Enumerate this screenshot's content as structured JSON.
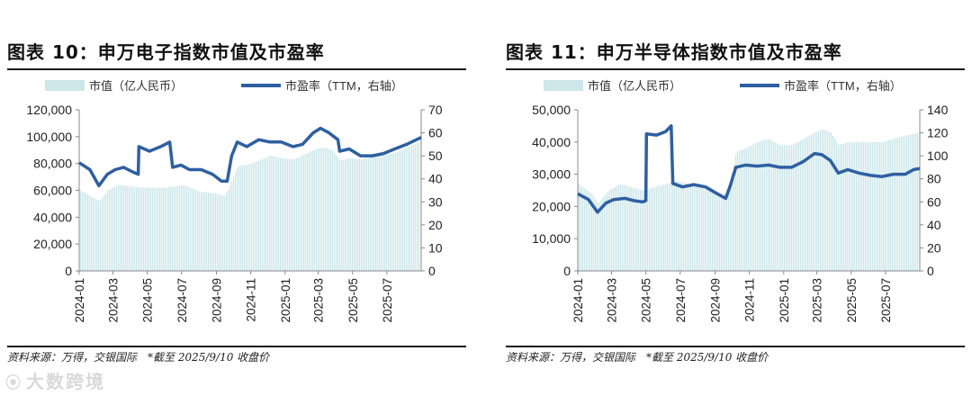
{
  "watermark": "大数跨境",
  "chart_data": [
    {
      "type": "bar+line",
      "title": "图表 10：申万电子指数市值及市盈率",
      "legend": {
        "bar": "市值（亿人民币）",
        "line": "市盈率（TTM，右轴）",
        "placement": "top"
      },
      "x_ticks": [
        "2024-01",
        "2024-03",
        "2024-05",
        "2024-07",
        "2024-09",
        "2024-11",
        "2025-01",
        "2025-03",
        "2025-05",
        "2025-07"
      ],
      "x_range": [
        "2024-01-01",
        "2025-08-31"
      ],
      "y_left": {
        "range": [
          0,
          120000
        ],
        "ticks": [
          "0",
          "20,000",
          "40,000",
          "60,000",
          "80,000",
          "100,000",
          "120,000"
        ]
      },
      "y_right": {
        "range": [
          0,
          70
        ],
        "ticks": [
          "0",
          "10",
          "20",
          "30",
          "40",
          "50",
          "60",
          "70"
        ]
      },
      "bar_color": "#cce6ea",
      "line_color": "#2e5fa1",
      "series": [
        {
          "name": "市值（亿人民币）",
          "axis": "left",
          "points": [
            [
              "2024-01-01",
              60000
            ],
            [
              "2024-01-20",
              56000
            ],
            [
              "2024-02-05",
              52000
            ],
            [
              "2024-02-20",
              60000
            ],
            [
              "2024-03-10",
              64000
            ],
            [
              "2024-04-01",
              63000
            ],
            [
              "2024-04-20",
              62000
            ],
            [
              "2024-05-10",
              62000
            ],
            [
              "2024-06-01",
              62000
            ],
            [
              "2024-06-20",
              63000
            ],
            [
              "2024-07-05",
              64000
            ],
            [
              "2024-08-01",
              59000
            ],
            [
              "2024-08-25",
              58000
            ],
            [
              "2024-09-15",
              56000
            ],
            [
              "2024-09-25",
              64000
            ],
            [
              "2024-10-08",
              78000
            ],
            [
              "2024-10-25",
              79000
            ],
            [
              "2024-11-15",
              82000
            ],
            [
              "2024-12-05",
              86000
            ],
            [
              "2024-12-25",
              84000
            ],
            [
              "2025-01-15",
              83000
            ],
            [
              "2025-02-05",
              87000
            ],
            [
              "2025-02-25",
              91000
            ],
            [
              "2025-03-10",
              92000
            ],
            [
              "2025-03-25",
              90000
            ],
            [
              "2025-04-08",
              82000
            ],
            [
              "2025-04-25",
              84000
            ],
            [
              "2025-05-15",
              83000
            ],
            [
              "2025-06-05",
              85000
            ],
            [
              "2025-06-25",
              86000
            ],
            [
              "2025-07-15",
              88000
            ],
            [
              "2025-08-05",
              92000
            ],
            [
              "2025-08-31",
              97000
            ]
          ]
        },
        {
          "name": "市盈率（TTM，右轴）",
          "axis": "right",
          "points": [
            [
              "2024-01-01",
              47
            ],
            [
              "2024-01-20",
              44
            ],
            [
              "2024-02-05",
              37
            ],
            [
              "2024-02-20",
              42
            ],
            [
              "2024-03-05",
              44
            ],
            [
              "2024-03-20",
              45
            ],
            [
              "2024-04-05",
              43
            ],
            [
              "2024-04-15",
              42
            ],
            [
              "2024-04-16",
              54
            ],
            [
              "2024-05-05",
              52
            ],
            [
              "2024-05-25",
              54
            ],
            [
              "2024-06-10",
              56
            ],
            [
              "2024-06-15",
              45
            ],
            [
              "2024-06-30",
              46
            ],
            [
              "2024-07-15",
              44
            ],
            [
              "2024-08-05",
              44
            ],
            [
              "2024-08-25",
              42
            ],
            [
              "2024-09-10",
              39
            ],
            [
              "2024-09-20",
              39
            ],
            [
              "2024-09-28",
              50
            ],
            [
              "2024-10-08",
              56
            ],
            [
              "2024-10-25",
              54
            ],
            [
              "2024-11-15",
              57
            ],
            [
              "2024-12-05",
              56
            ],
            [
              "2024-12-25",
              56
            ],
            [
              "2025-01-15",
              54
            ],
            [
              "2025-02-01",
              55
            ],
            [
              "2025-02-20",
              60
            ],
            [
              "2025-03-05",
              62
            ],
            [
              "2025-03-20",
              60
            ],
            [
              "2025-04-05",
              57
            ],
            [
              "2025-04-08",
              52
            ],
            [
              "2025-04-25",
              53
            ],
            [
              "2025-05-15",
              50
            ],
            [
              "2025-06-05",
              50
            ],
            [
              "2025-06-25",
              51
            ],
            [
              "2025-07-15",
              53
            ],
            [
              "2025-08-05",
              55
            ],
            [
              "2025-08-31",
              58
            ]
          ]
        }
      ],
      "source": "资料来源：万得，交银国际　*截至 2025/9/10 收盘价"
    },
    {
      "type": "bar+line",
      "title": "图表 11：申万半导体指数市值及市盈率",
      "legend": {
        "bar": "市值（亿人民币）",
        "line": "市盈率（TTM，右轴）",
        "placement": "top"
      },
      "x_ticks": [
        "2024-01",
        "2024-03",
        "2024-05",
        "2024-07",
        "2024-09",
        "2024-11",
        "2025-01",
        "2025-03",
        "2025-05",
        "2025-07"
      ],
      "x_range": [
        "2024-01-01",
        "2025-08-31"
      ],
      "y_left": {
        "range": [
          0,
          50000
        ],
        "ticks": [
          "0",
          "10,000",
          "20,000",
          "30,000",
          "40,000",
          "50,000"
        ]
      },
      "y_right": {
        "range": [
          0,
          140
        ],
        "ticks": [
          "0",
          "20",
          "40",
          "60",
          "80",
          "100",
          "120",
          "140"
        ]
      },
      "bar_color": "#cce6ea",
      "line_color": "#2e5fa1",
      "series": [
        {
          "name": "市值（亿人民币）",
          "axis": "left",
          "points": [
            [
              "2024-01-01",
              27000
            ],
            [
              "2024-01-25",
              24000
            ],
            [
              "2024-02-05",
              21000
            ],
            [
              "2024-02-25",
              25000
            ],
            [
              "2024-03-15",
              27000
            ],
            [
              "2024-04-05",
              26000
            ],
            [
              "2024-04-25",
              25000
            ],
            [
              "2024-05-15",
              26000
            ],
            [
              "2024-06-05",
              27000
            ],
            [
              "2024-06-25",
              28000
            ],
            [
              "2024-07-15",
              27000
            ],
            [
              "2024-08-05",
              26000
            ],
            [
              "2024-08-25",
              25000
            ],
            [
              "2024-09-15",
              23000
            ],
            [
              "2024-09-28",
              28000
            ],
            [
              "2024-10-08",
              37000
            ],
            [
              "2024-10-25",
              38000
            ],
            [
              "2024-11-15",
              40000
            ],
            [
              "2024-12-05",
              41000
            ],
            [
              "2024-12-25",
              39000
            ],
            [
              "2025-01-15",
              39000
            ],
            [
              "2025-02-05",
              41000
            ],
            [
              "2025-02-25",
              43000
            ],
            [
              "2025-03-10",
              44000
            ],
            [
              "2025-03-25",
              43000
            ],
            [
              "2025-04-08",
              39000
            ],
            [
              "2025-04-25",
              40000
            ],
            [
              "2025-05-15",
              40000
            ],
            [
              "2025-06-05",
              40000
            ],
            [
              "2025-06-25",
              40000
            ],
            [
              "2025-07-15",
              41000
            ],
            [
              "2025-08-05",
              42000
            ],
            [
              "2025-08-31",
              43000
            ]
          ]
        },
        {
          "name": "市盈率（TTM，右轴）",
          "axis": "right",
          "points": [
            [
              "2024-01-01",
              67
            ],
            [
              "2024-01-20",
              62
            ],
            [
              "2024-02-05",
              51
            ],
            [
              "2024-02-20",
              59
            ],
            [
              "2024-03-05",
              62
            ],
            [
              "2024-03-25",
              63
            ],
            [
              "2024-04-10",
              61
            ],
            [
              "2024-04-25",
              60
            ],
            [
              "2024-05-01",
              61
            ],
            [
              "2024-05-02",
              119
            ],
            [
              "2024-05-20",
              118
            ],
            [
              "2024-06-05",
              121
            ],
            [
              "2024-06-15",
              126
            ],
            [
              "2024-06-18",
              76
            ],
            [
              "2024-07-05",
              73
            ],
            [
              "2024-07-25",
              75
            ],
            [
              "2024-08-15",
              73
            ],
            [
              "2024-09-05",
              67
            ],
            [
              "2024-09-20",
              63
            ],
            [
              "2024-09-28",
              74
            ],
            [
              "2024-10-08",
              90
            ],
            [
              "2024-10-25",
              92
            ],
            [
              "2024-11-15",
              91
            ],
            [
              "2024-12-05",
              92
            ],
            [
              "2024-12-25",
              90
            ],
            [
              "2025-01-15",
              90
            ],
            [
              "2025-02-05",
              95
            ],
            [
              "2025-02-25",
              102
            ],
            [
              "2025-03-10",
              101
            ],
            [
              "2025-03-25",
              96
            ],
            [
              "2025-04-08",
              85
            ],
            [
              "2025-04-25",
              88
            ],
            [
              "2025-05-15",
              85
            ],
            [
              "2025-06-05",
              83
            ],
            [
              "2025-06-25",
              82
            ],
            [
              "2025-07-15",
              84
            ],
            [
              "2025-08-05",
              84
            ],
            [
              "2025-08-20",
              88
            ],
            [
              "2025-08-31",
              89
            ]
          ]
        }
      ],
      "source": "资料来源：万得，交银国际　*截至 2025/9/10 收盘价"
    }
  ]
}
